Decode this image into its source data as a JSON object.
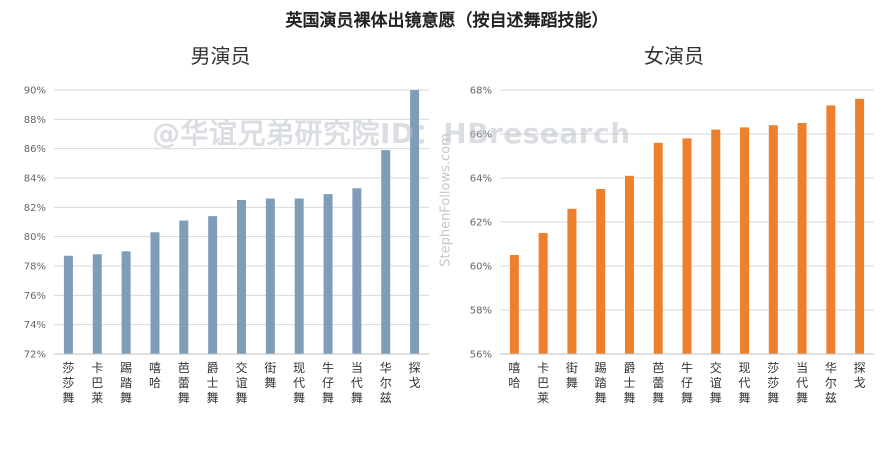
{
  "title": "英国演员裸体出镜意愿（按自述舞蹈技能）",
  "watermark": "@华谊兄弟研究院ID：HBresearch",
  "watermark2": "StephenFollows.com",
  "chart_data": [
    {
      "type": "bar",
      "title": "男演员",
      "categories": [
        "莎莎舞",
        "卡巴莱",
        "踢踏舞",
        "嘻哈",
        "芭蕾舞",
        "爵士舞",
        "交谊舞",
        "街舞",
        "现代舞",
        "牛仔舞",
        "当代舞",
        "华尔兹",
        "探戈"
      ],
      "values": [
        78.7,
        78.8,
        79.0,
        80.3,
        81.1,
        81.4,
        82.5,
        82.6,
        82.6,
        82.9,
        83.3,
        85.9,
        90.0
      ],
      "ylim": [
        72,
        90
      ],
      "yticks": [
        72,
        74,
        76,
        78,
        80,
        82,
        84,
        86,
        88,
        90
      ],
      "tick_suffix": "%",
      "color": "#7f9db9",
      "grid": true
    },
    {
      "type": "bar",
      "title": "女演员",
      "categories": [
        "嘻哈",
        "卡巴莱",
        "街舞",
        "踢踏舞",
        "爵士舞",
        "芭蕾舞",
        "牛仔舞",
        "交谊舞",
        "现代舞",
        "莎莎舞",
        "当代舞",
        "华尔兹",
        "探戈"
      ],
      "values": [
        60.5,
        61.5,
        62.6,
        63.5,
        64.1,
        65.6,
        65.8,
        66.2,
        66.3,
        66.4,
        66.5,
        67.3,
        67.6
      ],
      "ylim": [
        56,
        68
      ],
      "yticks": [
        56,
        58,
        60,
        62,
        64,
        66,
        68
      ],
      "tick_suffix": "%",
      "color": "#ee7f2d",
      "grid": true
    }
  ]
}
